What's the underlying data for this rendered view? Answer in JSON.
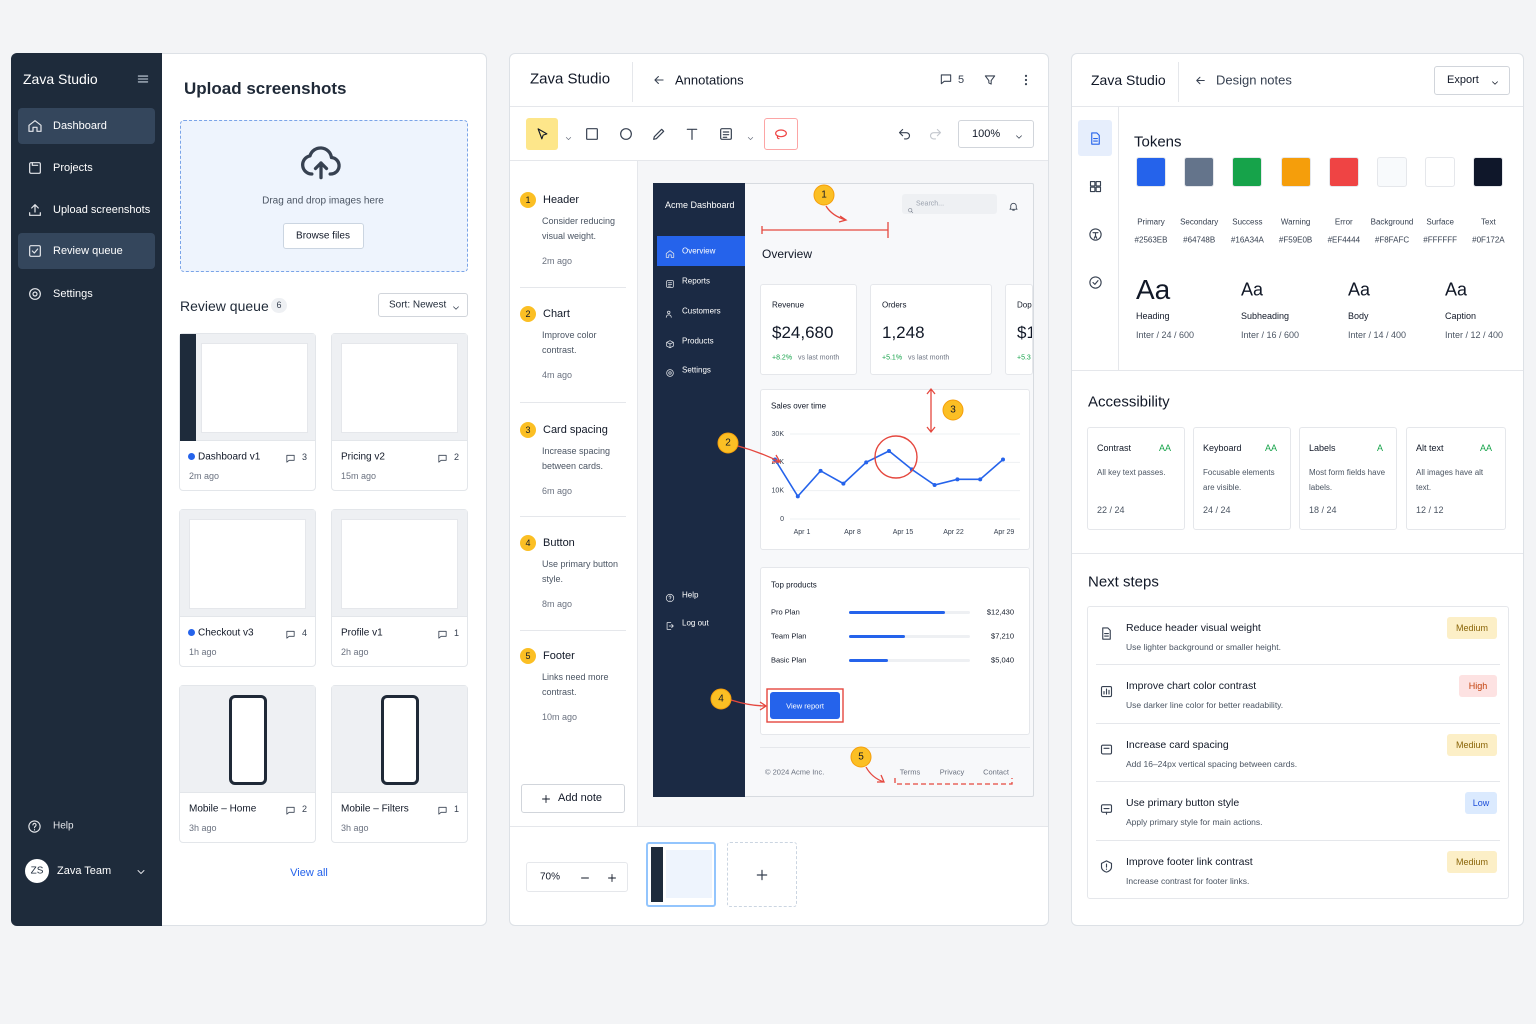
{
  "sidebar": {
    "brand": "Zava Studio",
    "nav": [
      "Dashboard",
      "Projects",
      "Upload screenshots",
      "Review queue",
      "Settings"
    ],
    "help": "Help",
    "user_initials": "ZS",
    "user_name": "Zava Team"
  },
  "upload": {
    "title": "Upload screenshots",
    "hint": "Drag and drop images here",
    "button": "Browse files"
  },
  "queue": {
    "title": "Review queue",
    "count": 6,
    "sort": "Sort: Newest",
    "items": [
      {
        "name": "Dashboard v1",
        "time": "2m ago",
        "comments": 3
      },
      {
        "name": "Pricing v2",
        "time": "15m ago",
        "comments": 2
      },
      {
        "name": "Checkout v3",
        "time": "1h ago",
        "comments": 4
      },
      {
        "name": "Profile v1",
        "time": "2h ago",
        "comments": 1
      },
      {
        "name": "Mobile – Home",
        "time": "3h ago",
        "comments": 2
      },
      {
        "name": "Mobile – Filters",
        "time": "3h ago",
        "comments": 1
      }
    ],
    "view_all": "View all"
  },
  "annotations": {
    "brand": "Zava Studio",
    "title": "Annotations",
    "comment_count": 5,
    "zoom": "100%",
    "notes": [
      {
        "number": 1,
        "title": "Header",
        "body": "Consider reducing visual weight.",
        "time": "2m ago"
      },
      {
        "number": 2,
        "title": "Chart",
        "body": "Improve color contrast.",
        "time": "4m ago"
      },
      {
        "number": 3,
        "title": "Card spacing",
        "body": "Increase spacing between cards.",
        "time": "6m ago"
      },
      {
        "number": 4,
        "title": "Button",
        "body": "Use primary button style.",
        "time": "8m ago"
      },
      {
        "number": 5,
        "title": "Footer",
        "body": "Links need more contrast.",
        "time": "10m ago"
      }
    ],
    "add_note": "Add note",
    "canvas_zoom": "70%"
  },
  "preview": {
    "brand": "Acme Dashboard",
    "nav": [
      "Overview",
      "Reports",
      "Customers",
      "Products",
      "Settings"
    ],
    "nav_bottom": [
      "Help",
      "Log out"
    ],
    "search": "Search...",
    "heading": "Overview",
    "kpis": [
      {
        "label": "Revenue",
        "value": "$24,680",
        "delta": "+8.2%",
        "note": "vs last month"
      },
      {
        "label": "Orders",
        "value": "1,248",
        "delta": "+5.1%",
        "note": "vs last month"
      },
      {
        "label": "Dop",
        "value": "$1",
        "delta": "+5.3"
      }
    ],
    "sales": {
      "title": "Sales over time",
      "ylim": [
        0,
        30000
      ],
      "yticks": [
        {
          "value": 0,
          "label": "0"
        },
        {
          "value": 10000,
          "label": "10K"
        },
        {
          "value": 20000,
          "label": "20K"
        },
        {
          "value": 30000,
          "label": "30K"
        }
      ],
      "xticks": [
        "Apr 1",
        "Apr 8",
        "Apr 15",
        "Apr 22",
        "Apr 29"
      ],
      "values": [
        21000,
        8000,
        17000,
        12500,
        20000,
        24000,
        17500,
        12000,
        14000,
        14000,
        21000
      ],
      "color": "#2563eb"
    },
    "products": {
      "title": "Top products",
      "items": [
        {
          "name": "Pro Plan",
          "value": 12430,
          "label": "$12,430"
        },
        {
          "name": "Team Plan",
          "value": 7210,
          "label": "$7,210"
        },
        {
          "name": "Basic Plan",
          "value": 5040,
          "label": "$5,040"
        }
      ]
    },
    "button": "View report",
    "footer": "© 2024 Acme Inc.",
    "links": [
      "Terms",
      "Privacy",
      "Contact"
    ],
    "markers": [
      1,
      2,
      3,
      4,
      5
    ]
  },
  "design": {
    "brand": "Zava Studio",
    "title": "Design notes",
    "export": "Export",
    "tokens_title": "Tokens",
    "colors": [
      {
        "name": "Primary",
        "hex": "#2563EB"
      },
      {
        "name": "Secondary",
        "hex": "#64748B"
      },
      {
        "name": "Success",
        "hex": "#16A34A"
      },
      {
        "name": "Warning",
        "hex": "#F59E0B"
      },
      {
        "name": "Error",
        "hex": "#EF4444"
      },
      {
        "name": "Background",
        "hex": "#F8FAFC"
      },
      {
        "name": "Surface",
        "hex": "#FFFFFF"
      },
      {
        "name": "Text",
        "hex": "#0F172A"
      }
    ],
    "type": [
      {
        "sample": "Aa",
        "name": "Heading",
        "spec": "Inter / 24 / 600"
      },
      {
        "sample": "Aa",
        "name": "Subheading",
        "spec": "Inter / 16 / 600"
      },
      {
        "sample": "Aa",
        "name": "Body",
        "spec": "Inter / 14 / 400"
      },
      {
        "sample": "Aa",
        "name": "Caption",
        "spec": "Inter / 12 / 400"
      }
    ],
    "accessibility_title": "Accessibility",
    "checks": [
      {
        "title": "Contrast",
        "level": "AA",
        "body": "All key text passes.",
        "score": "22 / 24"
      },
      {
        "title": "Keyboard",
        "level": "AA",
        "body": "Focusable elements are visible.",
        "score": "24 / 24"
      },
      {
        "title": "Labels",
        "level": "A",
        "body": "Most form fields have labels.",
        "score": "18 / 24"
      },
      {
        "title": "Alt text",
        "level": "AA",
        "body": "All images have alt text.",
        "score": "12 / 12"
      }
    ],
    "next_title": "Next steps",
    "steps": [
      {
        "title": "Reduce header visual weight",
        "body": "Use lighter background or smaller height.",
        "priority": "Medium",
        "bg": "#fcefc7",
        "fg": "#8a6508"
      },
      {
        "title": "Improve chart color contrast",
        "body": "Use darker line color for better readability.",
        "priority": "High",
        "bg": "#fde2e2",
        "fg": "#c2410c"
      },
      {
        "title": "Increase card spacing",
        "body": "Add 16–24px vertical spacing between cards.",
        "priority": "Medium",
        "bg": "#fcefc7",
        "fg": "#8a6508"
      },
      {
        "title": "Use primary button style",
        "body": "Apply primary style for main actions.",
        "priority": "Low",
        "bg": "#dbeafe",
        "fg": "#1d4ed8"
      },
      {
        "title": "Improve footer link contrast",
        "body": "Increase contrast for footer links.",
        "priority": "Medium",
        "bg": "#fcefc7",
        "fg": "#8a6508"
      }
    ]
  }
}
